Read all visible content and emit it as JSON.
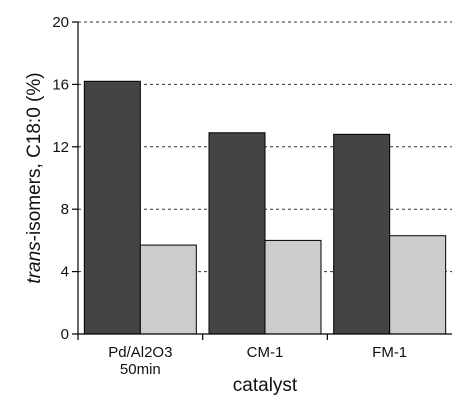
{
  "chart_data": {
    "type": "bar",
    "categories": [
      [
        "Pd/Al2O3",
        "50min"
      ],
      [
        "CM-1"
      ],
      [
        "FM-1"
      ]
    ],
    "series": [
      {
        "values": [
          16.2,
          12.9,
          12.8
        ],
        "color": "#444444"
      },
      {
        "values": [
          5.7,
          6.0,
          6.3
        ],
        "color": "#cccccc"
      }
    ],
    "xlabel": "catalyst",
    "ylabel_prefix_italic": "trans",
    "ylabel_rest": "-isomers, C18:0 (%)",
    "ylim": [
      0,
      20
    ],
    "yticks": [
      0,
      4,
      8,
      12,
      16,
      20
    ],
    "grid": true,
    "grid_style": "dashed"
  }
}
